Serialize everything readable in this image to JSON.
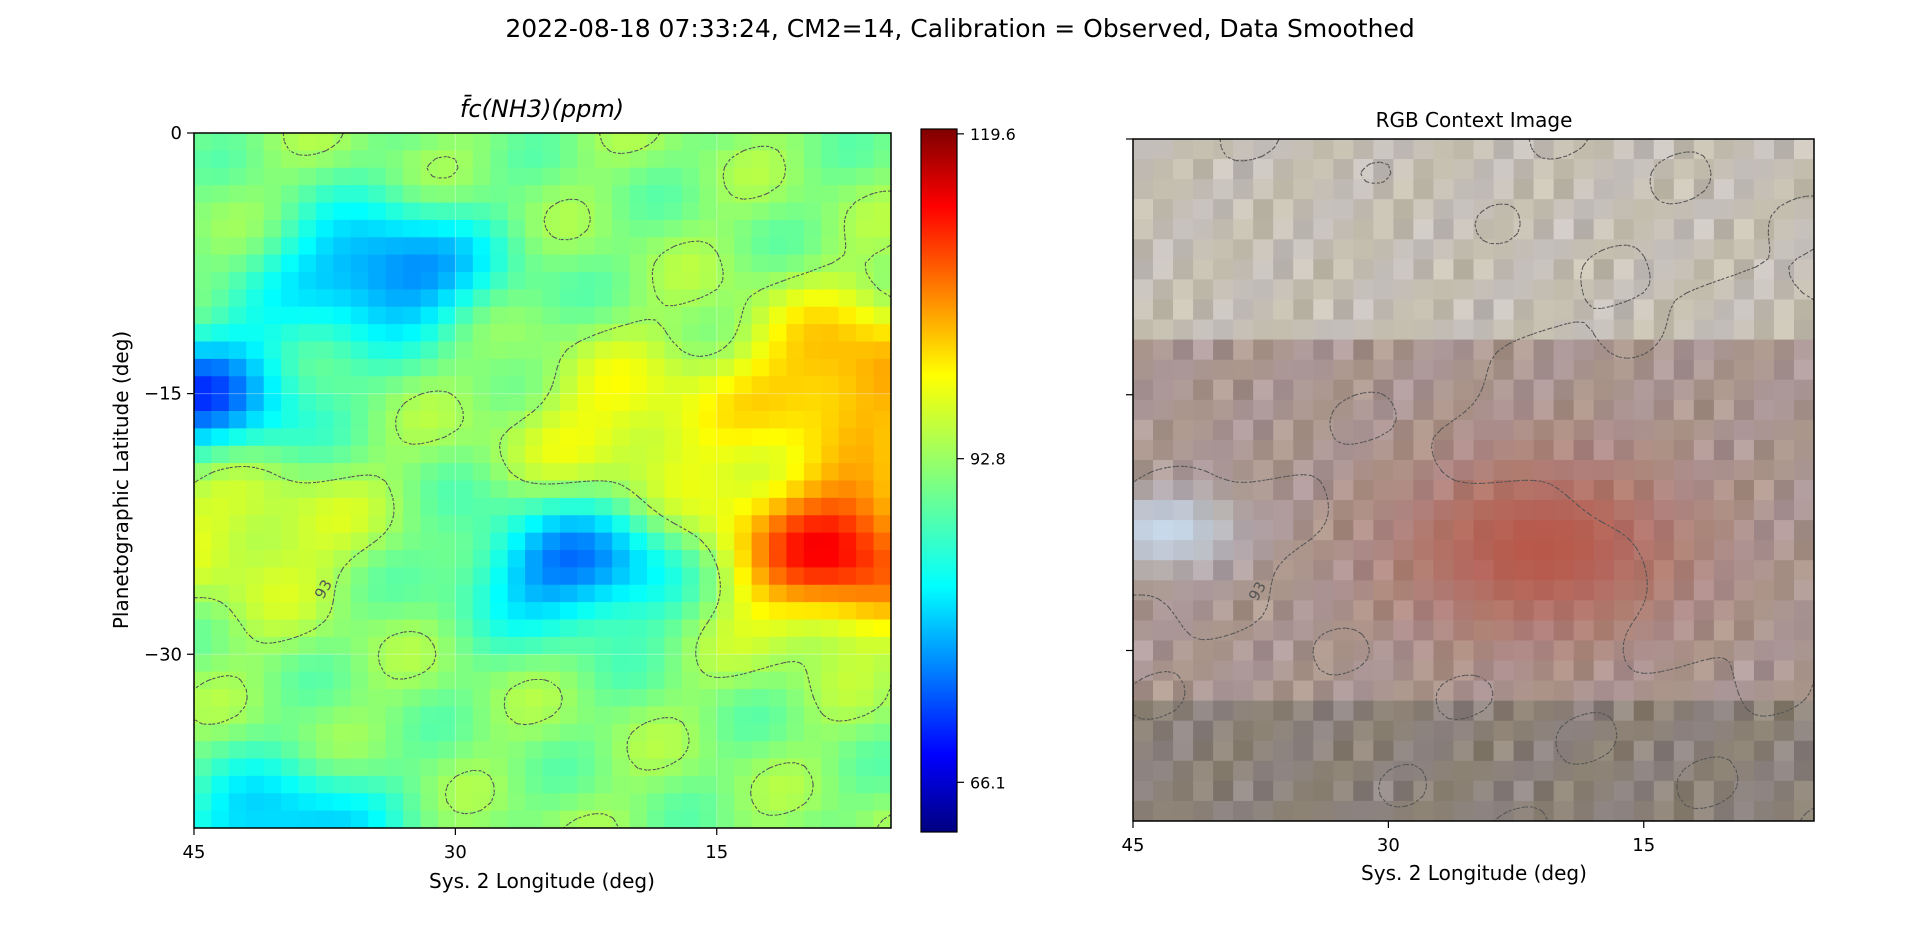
{
  "figure": {
    "suptitle": "2022-08-18 07:33:24, CM2=14, Calibration = Observed, Data Smoothed"
  },
  "chart_data": [
    {
      "type": "heatmap",
      "title": "f̄c(NH3)(ppm)",
      "xlabel": "Sys. 2 Longitude (deg)",
      "ylabel": "Planetographic Latitude (deg)",
      "xlim": [
        45,
        5
      ],
      "ylim": [
        -40,
        0
      ],
      "x_ticks": [
        45,
        30,
        15
      ],
      "y_ticks": [
        0,
        -15,
        -30
      ],
      "colormap": "jet",
      "colorbar": {
        "vmin": 62.0,
        "vmax": 120.0,
        "ticks": [
          "119.6",
          "92.8",
          "66.1"
        ]
      },
      "contour": {
        "level": 93,
        "label": "93",
        "style": "dashed"
      },
      "field_features": [
        {
          "kind": "low",
          "lon": 34,
          "lat": -8,
          "value": 76
        },
        {
          "kind": "low",
          "lon": 45,
          "lat": -15,
          "value": 74
        },
        {
          "kind": "low",
          "lon": 23,
          "lat": -25,
          "value": 76
        },
        {
          "kind": "low",
          "lon": 40,
          "lat": -40,
          "value": 80
        },
        {
          "kind": "high",
          "lon": 8,
          "lat": -24,
          "value": 112
        },
        {
          "kind": "high",
          "lon": 7,
          "lat": -14,
          "value": 104
        },
        {
          "kind": "high",
          "lon": 20,
          "lat": -17,
          "value": 98
        },
        {
          "kind": "high",
          "lon": 42,
          "lat": -23,
          "value": 97
        }
      ]
    },
    {
      "type": "image",
      "title": "RGB Context Image",
      "xlabel": "Sys. 2 Longitude (deg)",
      "xlim": [
        45,
        5
      ],
      "ylim": [
        -40,
        0
      ],
      "x_ticks": [
        45,
        30,
        15
      ],
      "features": [
        {
          "kind": "red-oval",
          "lon": 21,
          "lat": -24,
          "color": "#b8584a"
        },
        {
          "kind": "white-spot",
          "lon": 43,
          "lat": -23,
          "color": "#c6d8ea"
        }
      ]
    }
  ]
}
